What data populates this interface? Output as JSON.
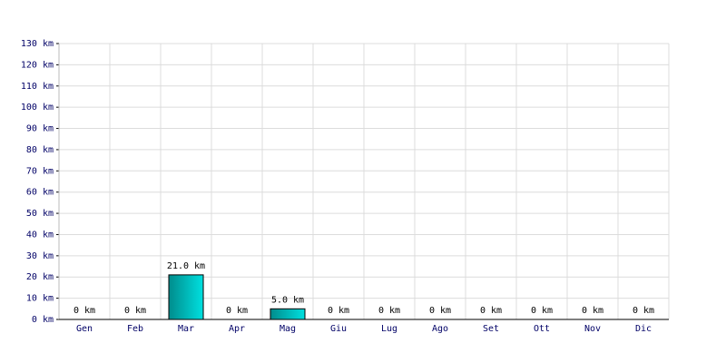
{
  "chart_data": {
    "type": "bar",
    "categories": [
      "Gen",
      "Feb",
      "Mar",
      "Apr",
      "Mag",
      "Giu",
      "Lug",
      "Ago",
      "Set",
      "Ott",
      "Nov",
      "Dic"
    ],
    "values": [
      0,
      0,
      21.0,
      0,
      5.0,
      0,
      0,
      0,
      0,
      0,
      0,
      0
    ],
    "value_labels": [
      "0 km",
      "0 km",
      "21.0 km",
      "0 km",
      "5.0 km",
      "0 km",
      "0 km",
      "0 km",
      "0 km",
      "0 km",
      "0 km",
      "0 km"
    ],
    "color": "#00e0e0",
    "ylim": [
      0,
      130
    ],
    "yticks": [
      {
        "value": 0,
        "label": "0 km"
      },
      {
        "value": 10,
        "label": "10 km"
      },
      {
        "value": 20,
        "label": "20 km"
      },
      {
        "value": 30,
        "label": "30 km"
      },
      {
        "value": 40,
        "label": "40 km"
      },
      {
        "value": 50,
        "label": "50 km"
      },
      {
        "value": 60,
        "label": "60 km"
      },
      {
        "value": 70,
        "label": "70 km"
      },
      {
        "value": 80,
        "label": "80 km"
      },
      {
        "value": 90,
        "label": "90 km"
      },
      {
        "value": 100,
        "label": "100 km"
      },
      {
        "value": 110,
        "label": "110 km"
      },
      {
        "value": 120,
        "label": "120 km"
      },
      {
        "value": 130,
        "label": "130 km"
      }
    ],
    "grid": true
  }
}
